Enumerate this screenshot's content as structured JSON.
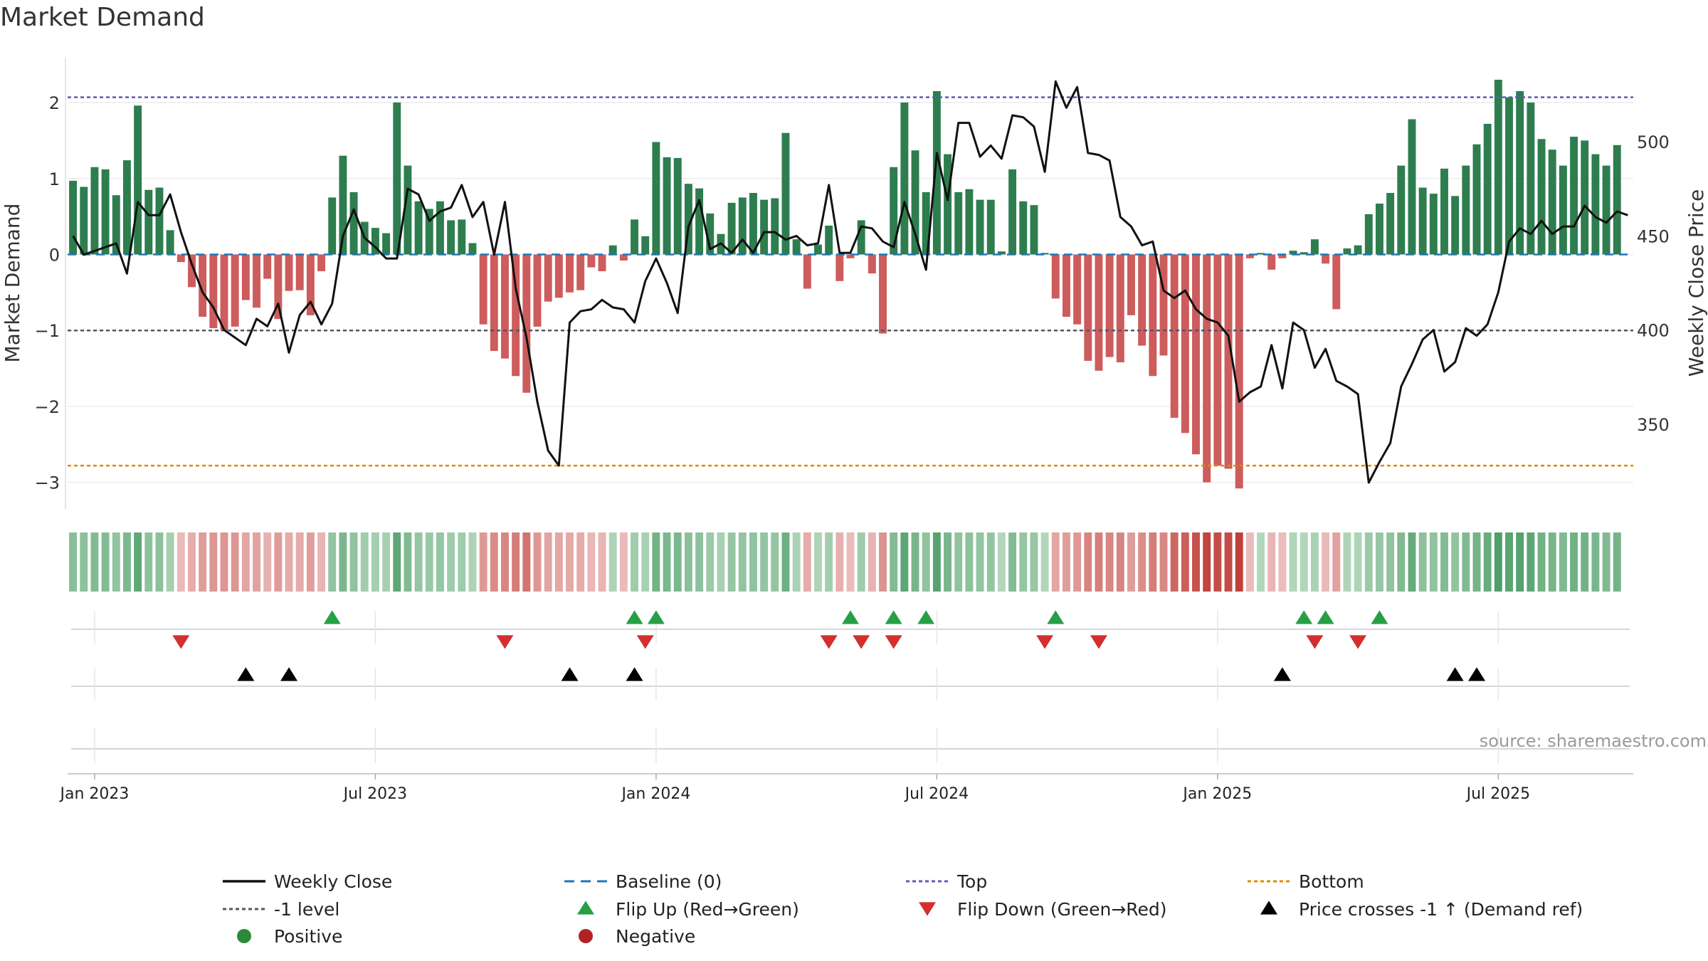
{
  "title": "Market Demand",
  "source": "source: sharemaestro.com",
  "colors": {
    "positive": "#2e7d4f",
    "negative": "#cd5c5c",
    "close": "#111111",
    "baseline": "#1f77b4",
    "top": "#5b5bb8",
    "minus_one": "#555566",
    "bottom": "#e08a00",
    "flip_up": "#27a045",
    "flip_down": "#d32f2f",
    "cross": "#000000"
  },
  "chart_data": {
    "type": "bar",
    "title": "Market Demand",
    "ylabel_left": "Market Demand",
    "ylabel_right": "Weekly Close Price",
    "ylim_left": [
      -3.35,
      2.6
    ],
    "ylim_right": [
      305,
      545
    ],
    "yticks_left": [
      {
        "value": 2,
        "label": "2"
      },
      {
        "value": 1,
        "label": "1"
      },
      {
        "value": 0,
        "label": "0"
      },
      {
        "value": -1,
        "label": "−1"
      },
      {
        "value": -2,
        "label": "−2"
      },
      {
        "value": -3,
        "label": "−3"
      }
    ],
    "yticks_right": [
      {
        "value": 500,
        "label": "500"
      },
      {
        "value": 450,
        "label": "450"
      },
      {
        "value": 400,
        "label": "400"
      },
      {
        "value": 350,
        "label": "350"
      }
    ],
    "xtick_labels": [
      {
        "week": 2,
        "label": "Jan 2023"
      },
      {
        "week": 28,
        "label": "Jul 2023"
      },
      {
        "week": 54,
        "label": "Jan 2024"
      },
      {
        "week": 80,
        "label": "Jul 2024"
      },
      {
        "week": 106,
        "label": "Jan 2025"
      },
      {
        "week": 132,
        "label": "Jul 2025"
      }
    ],
    "weeks": 145,
    "levels": {
      "top": 2.07,
      "minus_one": -1.0,
      "bottom": -2.78,
      "baseline": 0
    },
    "demand": [
      0.97,
      0.89,
      1.15,
      1.12,
      0.78,
      1.24,
      1.96,
      0.85,
      0.88,
      0.32,
      -0.1,
      -0.43,
      -0.82,
      -0.97,
      -1.0,
      -0.95,
      -0.6,
      -0.7,
      -0.32,
      -0.85,
      -0.48,
      -0.47,
      -0.8,
      -0.22,
      0.75,
      1.3,
      0.82,
      0.43,
      0.35,
      0.28,
      2.0,
      1.17,
      0.7,
      0.6,
      0.7,
      0.45,
      0.46,
      0.15,
      -0.92,
      -1.27,
      -1.37,
      -1.6,
      -1.82,
      -0.95,
      -0.62,
      -0.57,
      -0.5,
      -0.47,
      -0.17,
      -0.22,
      0.12,
      -0.08,
      0.46,
      0.24,
      1.48,
      1.28,
      1.27,
      0.93,
      0.87,
      0.54,
      0.27,
      0.68,
      0.75,
      0.81,
      0.72,
      0.74,
      1.6,
      0.2,
      -0.45,
      0.13,
      0.38,
      -0.35,
      -0.05,
      0.45,
      -0.25,
      -1.04,
      1.15,
      2.0,
      1.37,
      0.82,
      2.15,
      1.32,
      0.82,
      0.86,
      0.72,
      0.72,
      0.04,
      1.12,
      0.7,
      0.65,
      0.02,
      -0.58,
      -0.82,
      -0.92,
      -1.4,
      -1.53,
      -1.35,
      -1.42,
      -0.8,
      -1.2,
      -1.6,
      -1.33,
      -2.15,
      -2.35,
      -2.63,
      -3.0,
      -2.78,
      -2.82,
      -3.08,
      -0.05,
      0.02,
      -0.2,
      -0.05,
      0.05,
      0.03,
      0.2,
      -0.12,
      -0.72,
      0.08,
      0.12,
      0.53,
      0.67,
      0.81,
      1.17,
      1.78,
      0.88,
      0.8,
      1.13,
      0.77,
      1.17,
      1.45,
      1.72,
      2.3,
      2.07,
      2.15,
      2.0,
      1.52,
      1.38,
      1.17,
      1.55,
      1.5,
      1.32,
      1.17,
      1.44
    ],
    "close": [
      450,
      440,
      442,
      444,
      446,
      430,
      468,
      461,
      461,
      472,
      452,
      435,
      420,
      412,
      400,
      396,
      392,
      406,
      402,
      414,
      388,
      408,
      415,
      403,
      414,
      450,
      464,
      449,
      444,
      438,
      438,
      475,
      472,
      458,
      463,
      465,
      477,
      460,
      468,
      440,
      468,
      422,
      396,
      362,
      336,
      328,
      404,
      410,
      411,
      416,
      412,
      411,
      404,
      426,
      438,
      425,
      409,
      455,
      469,
      443,
      446,
      441,
      448,
      441,
      452,
      452,
      448,
      450,
      445,
      446,
      477,
      441,
      441,
      455,
      454,
      447,
      444,
      468,
      451,
      432,
      494,
      469,
      510,
      510,
      492,
      498,
      491,
      514,
      513,
      508,
      484,
      532,
      518,
      529,
      494,
      493,
      490,
      460,
      455,
      445,
      447,
      421,
      417,
      421,
      411,
      406,
      404,
      397,
      362,
      367,
      370,
      392,
      369,
      404,
      400,
      380,
      390,
      373,
      370,
      366,
      319,
      330,
      340,
      370,
      382,
      395,
      400,
      378,
      383,
      401,
      397,
      403,
      420,
      447,
      454,
      451,
      458,
      451,
      455,
      455,
      466,
      460,
      457,
      463,
      461
    ],
    "strip": [
      0.97,
      0.89,
      1.15,
      1.12,
      0.78,
      1.24,
      1.96,
      0.85,
      0.88,
      0.32,
      -0.1,
      -0.43,
      -0.82,
      -0.97,
      -1.0,
      -0.95,
      -0.6,
      -0.7,
      -0.32,
      -0.85,
      -0.48,
      -0.47,
      -0.8,
      -0.22,
      0.75,
      1.3,
      0.82,
      0.43,
      0.35,
      0.28,
      2.0,
      1.17,
      0.7,
      0.6,
      0.7,
      0.45,
      0.46,
      0.15,
      -0.92,
      -1.27,
      -1.37,
      -1.6,
      -1.82,
      -0.95,
      -0.62,
      -0.57,
      -0.5,
      -0.47,
      -0.17,
      -0.22,
      0.12,
      -0.08,
      0.46,
      0.24,
      1.48,
      1.28,
      1.27,
      0.93,
      0.87,
      0.54,
      0.27,
      0.68,
      0.75,
      0.81,
      0.72,
      0.74,
      1.6,
      0.2,
      -0.45,
      0.13,
      0.38,
      -0.35,
      -0.05,
      0.45,
      -0.25,
      -1.04,
      1.15,
      2.0,
      1.37,
      0.82,
      2.15,
      1.32,
      0.82,
      0.86,
      0.72,
      0.72,
      0.04,
      1.12,
      0.7,
      0.65,
      0.02,
      -0.58,
      -0.82,
      -0.92,
      -1.4,
      -1.53,
      -1.35,
      -1.42,
      -0.8,
      -1.2,
      -1.6,
      -1.33,
      -2.15,
      -2.35,
      -2.63,
      -3.0,
      -2.78,
      -2.82,
      -3.08,
      -0.05,
      0.02,
      -0.2,
      -0.05,
      0.05,
      0.03,
      0.2,
      -0.12,
      -0.72,
      0.08,
      0.12,
      0.53,
      0.67,
      0.81,
      1.17,
      1.78,
      0.88,
      0.8,
      1.13,
      0.77,
      1.17,
      1.45,
      1.72,
      2.3,
      2.07,
      2.15,
      2.0,
      1.52,
      1.38,
      1.17,
      1.55,
      1.5,
      1.32,
      1.17,
      1.44
    ],
    "flip_up_weeks": [
      24,
      52,
      54,
      72,
      76,
      79,
      91,
      114,
      116,
      121
    ],
    "flip_down_weeks": [
      10,
      40,
      53,
      70,
      73,
      76,
      90,
      95,
      115,
      119
    ],
    "cross_weeks": [
      16,
      20,
      46,
      52,
      112,
      128,
      130
    ]
  },
  "legend": [
    {
      "label": "Weekly Close",
      "marker": "line",
      "color": "#111111"
    },
    {
      "label": "Baseline (0)",
      "marker": "dash",
      "color": "#1f77b4"
    },
    {
      "label": "Top",
      "marker": "dot",
      "color": "#5b5bb8"
    },
    {
      "label": "Bottom",
      "marker": "dot",
      "color": "#e08a00"
    },
    {
      "label": "-1 level",
      "marker": "dot",
      "color": "#555566"
    },
    {
      "label": "Flip Up (Red→Green)",
      "marker": "tri-up",
      "color": "#27a045"
    },
    {
      "label": "Flip Down (Green→Red)",
      "marker": "tri-down",
      "color": "#d32f2f"
    },
    {
      "label": "Price crosses -1 ↑ (Demand ref)",
      "marker": "tri-up",
      "color": "#000000"
    },
    {
      "label": "Positive",
      "marker": "circle",
      "color": "#2a8a3a"
    },
    {
      "label": "Negative",
      "marker": "circle",
      "color": "#b22222"
    }
  ]
}
